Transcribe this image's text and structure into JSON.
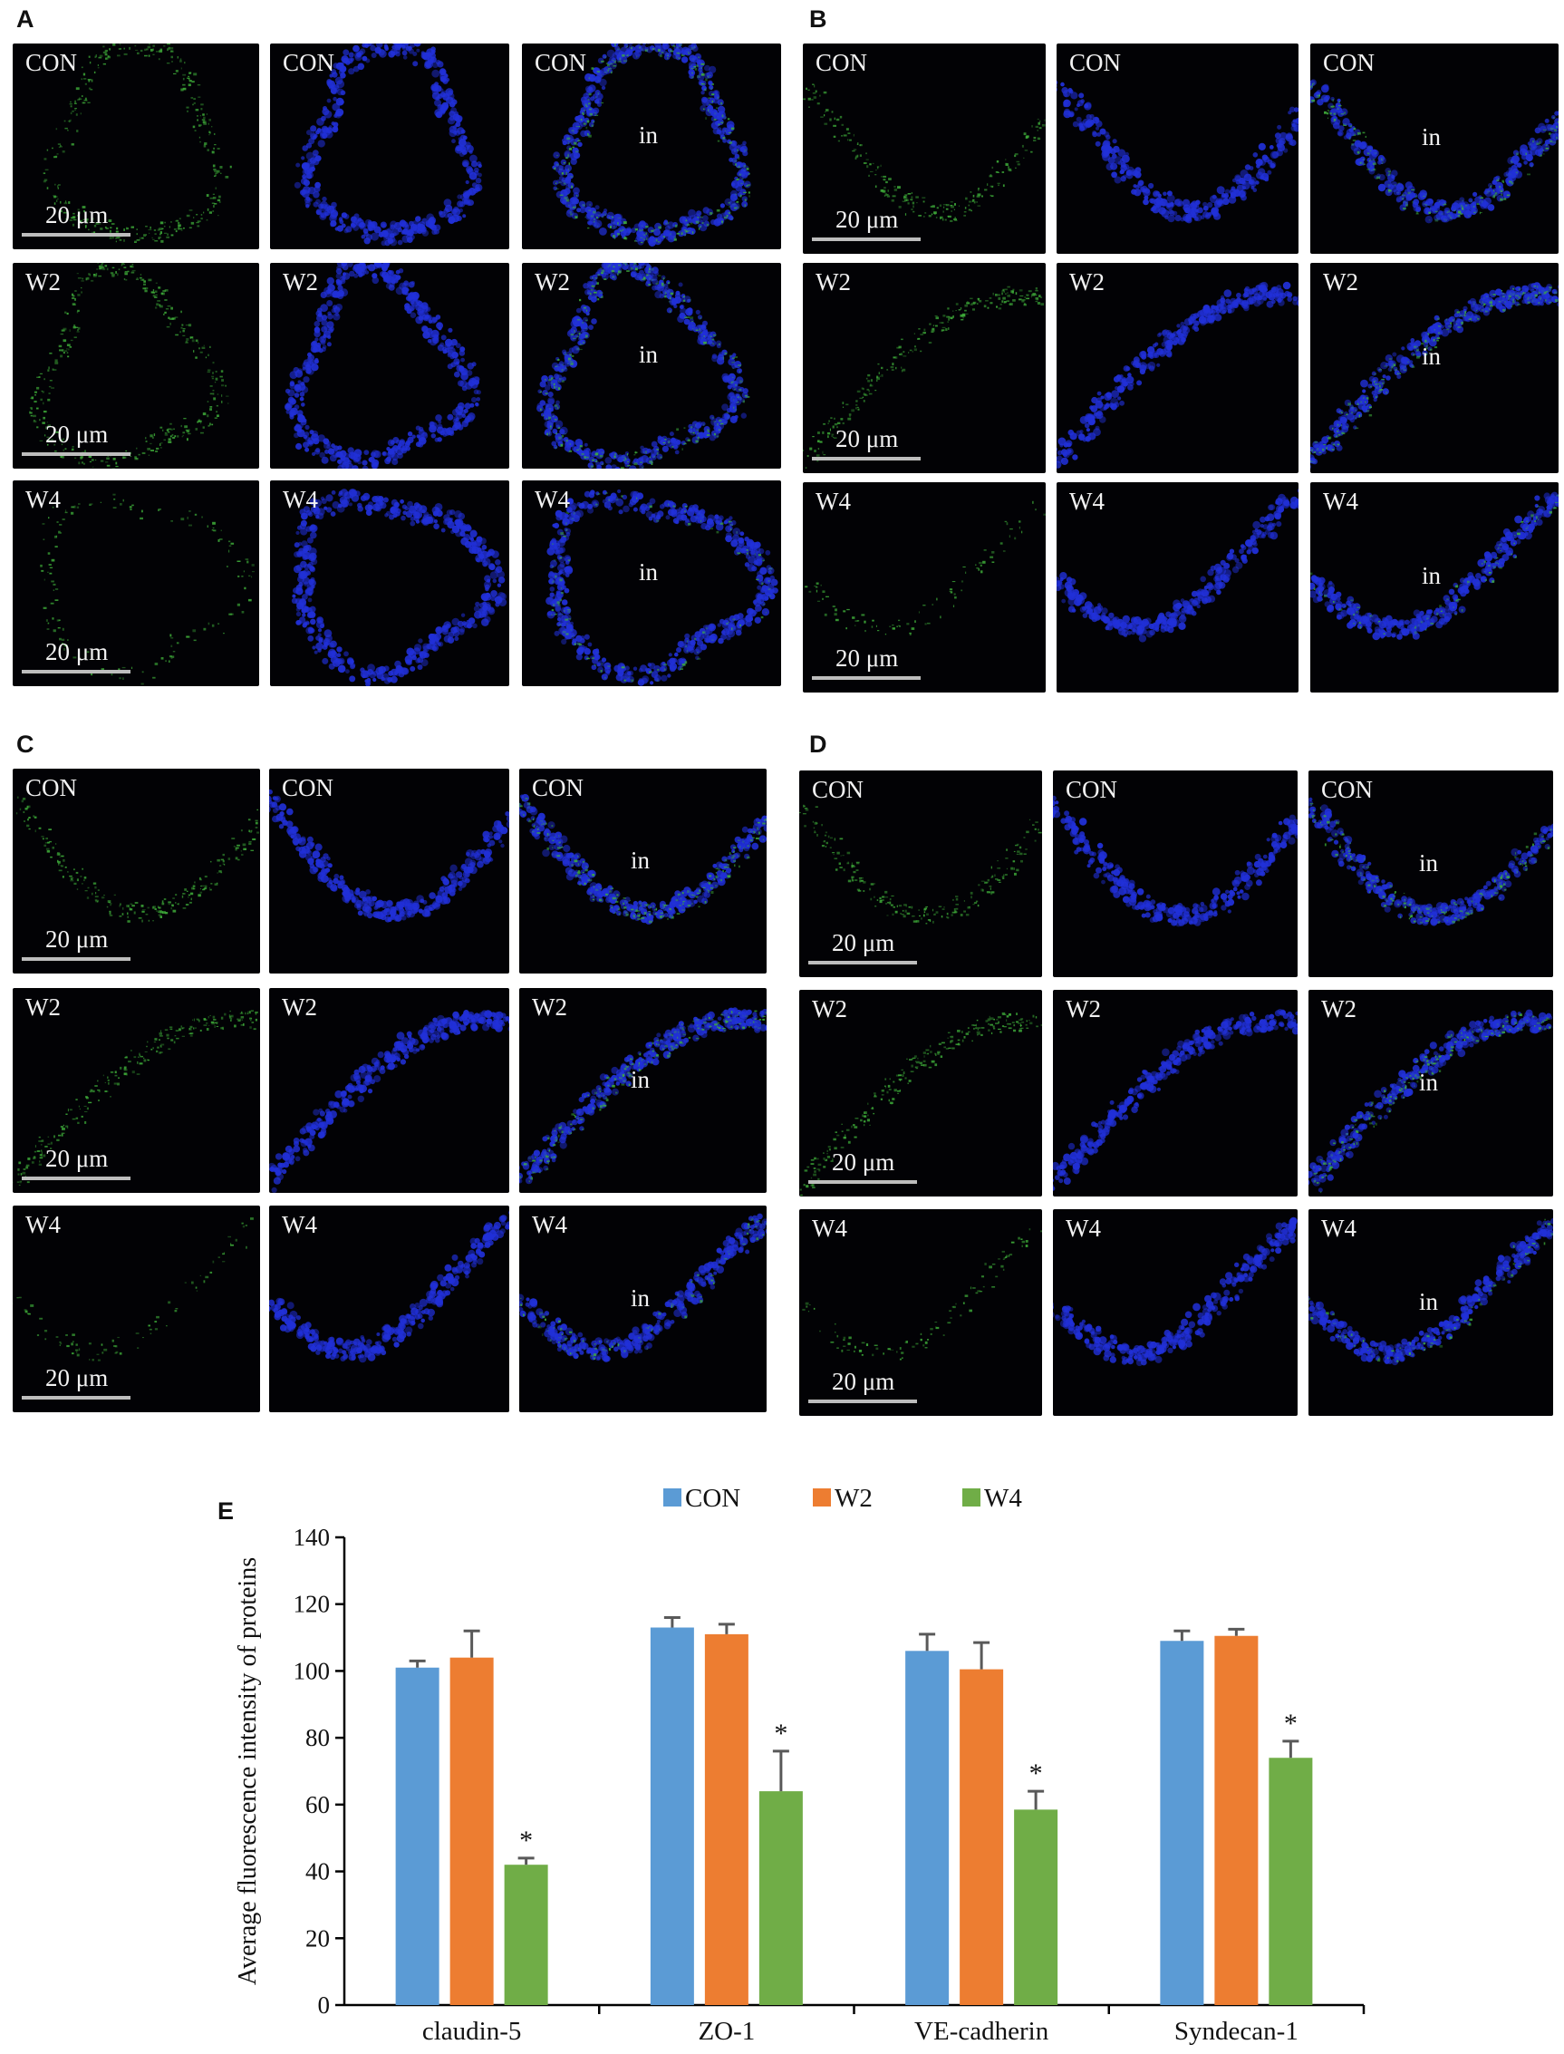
{
  "panels": [
    {
      "letter": "A",
      "rows": [
        {
          "group": "CON",
          "inner": "in",
          "scale": "20 μm"
        },
        {
          "group": "W2",
          "inner": "in",
          "scale": "20 μm"
        },
        {
          "group": "W4",
          "inner": "in",
          "scale": "20 μm"
        }
      ]
    },
    {
      "letter": "B",
      "rows": [
        {
          "group": "CON",
          "inner": "in",
          "scale": "20 μm"
        },
        {
          "group": "W2",
          "inner": "in",
          "scale": "20 μm"
        },
        {
          "group": "W4",
          "inner": "in",
          "scale": "20 μm"
        }
      ]
    },
    {
      "letter": "C",
      "rows": [
        {
          "group": "CON",
          "inner": "in",
          "scale": "20 μm"
        },
        {
          "group": "W2",
          "inner": "in",
          "scale": "20 μm"
        },
        {
          "group": "W4",
          "inner": "in",
          "scale": "20 μm"
        }
      ]
    },
    {
      "letter": "D",
      "rows": [
        {
          "group": "CON",
          "inner": "in",
          "scale": "20 μm"
        },
        {
          "group": "W2",
          "inner": "in",
          "scale": "20 μm"
        },
        {
          "group": "W4",
          "inner": "in",
          "scale": "20 μm"
        }
      ]
    }
  ],
  "colors": {
    "con": "#5b9bd5",
    "w2": "#ed7d31",
    "w4": "#70ad47",
    "green_stain": "#3fae3a",
    "blue_stain": "#2130d8"
  },
  "chart_data": {
    "type": "bar",
    "panel_letter": "E",
    "title": "",
    "xlabel": "",
    "ylabel": "Average fluorescence intensity of proteins",
    "ylim": [
      0,
      140
    ],
    "yticks": [
      0,
      20,
      40,
      60,
      80,
      100,
      120,
      140
    ],
    "categories": [
      "claudin-5",
      "ZO-1",
      "VE-cadherin",
      "Syndecan-1"
    ],
    "legend_position": "top-center",
    "grid": false,
    "series": [
      {
        "name": "CON",
        "color": "#5b9bd5",
        "values": [
          101,
          113,
          106,
          109
        ],
        "errors": [
          2,
          3,
          5,
          3
        ],
        "marks": [
          "",
          "",
          "",
          ""
        ]
      },
      {
        "name": "W2",
        "color": "#ed7d31",
        "values": [
          104,
          111,
          100.5,
          110.5
        ],
        "errors": [
          8,
          3,
          8,
          2
        ],
        "marks": [
          "",
          "",
          "",
          ""
        ]
      },
      {
        "name": "W4",
        "color": "#70ad47",
        "values": [
          42,
          64,
          58.5,
          74
        ],
        "errors": [
          2,
          12,
          5.5,
          5
        ],
        "marks": [
          "*",
          "*",
          "*",
          "*"
        ]
      }
    ]
  }
}
